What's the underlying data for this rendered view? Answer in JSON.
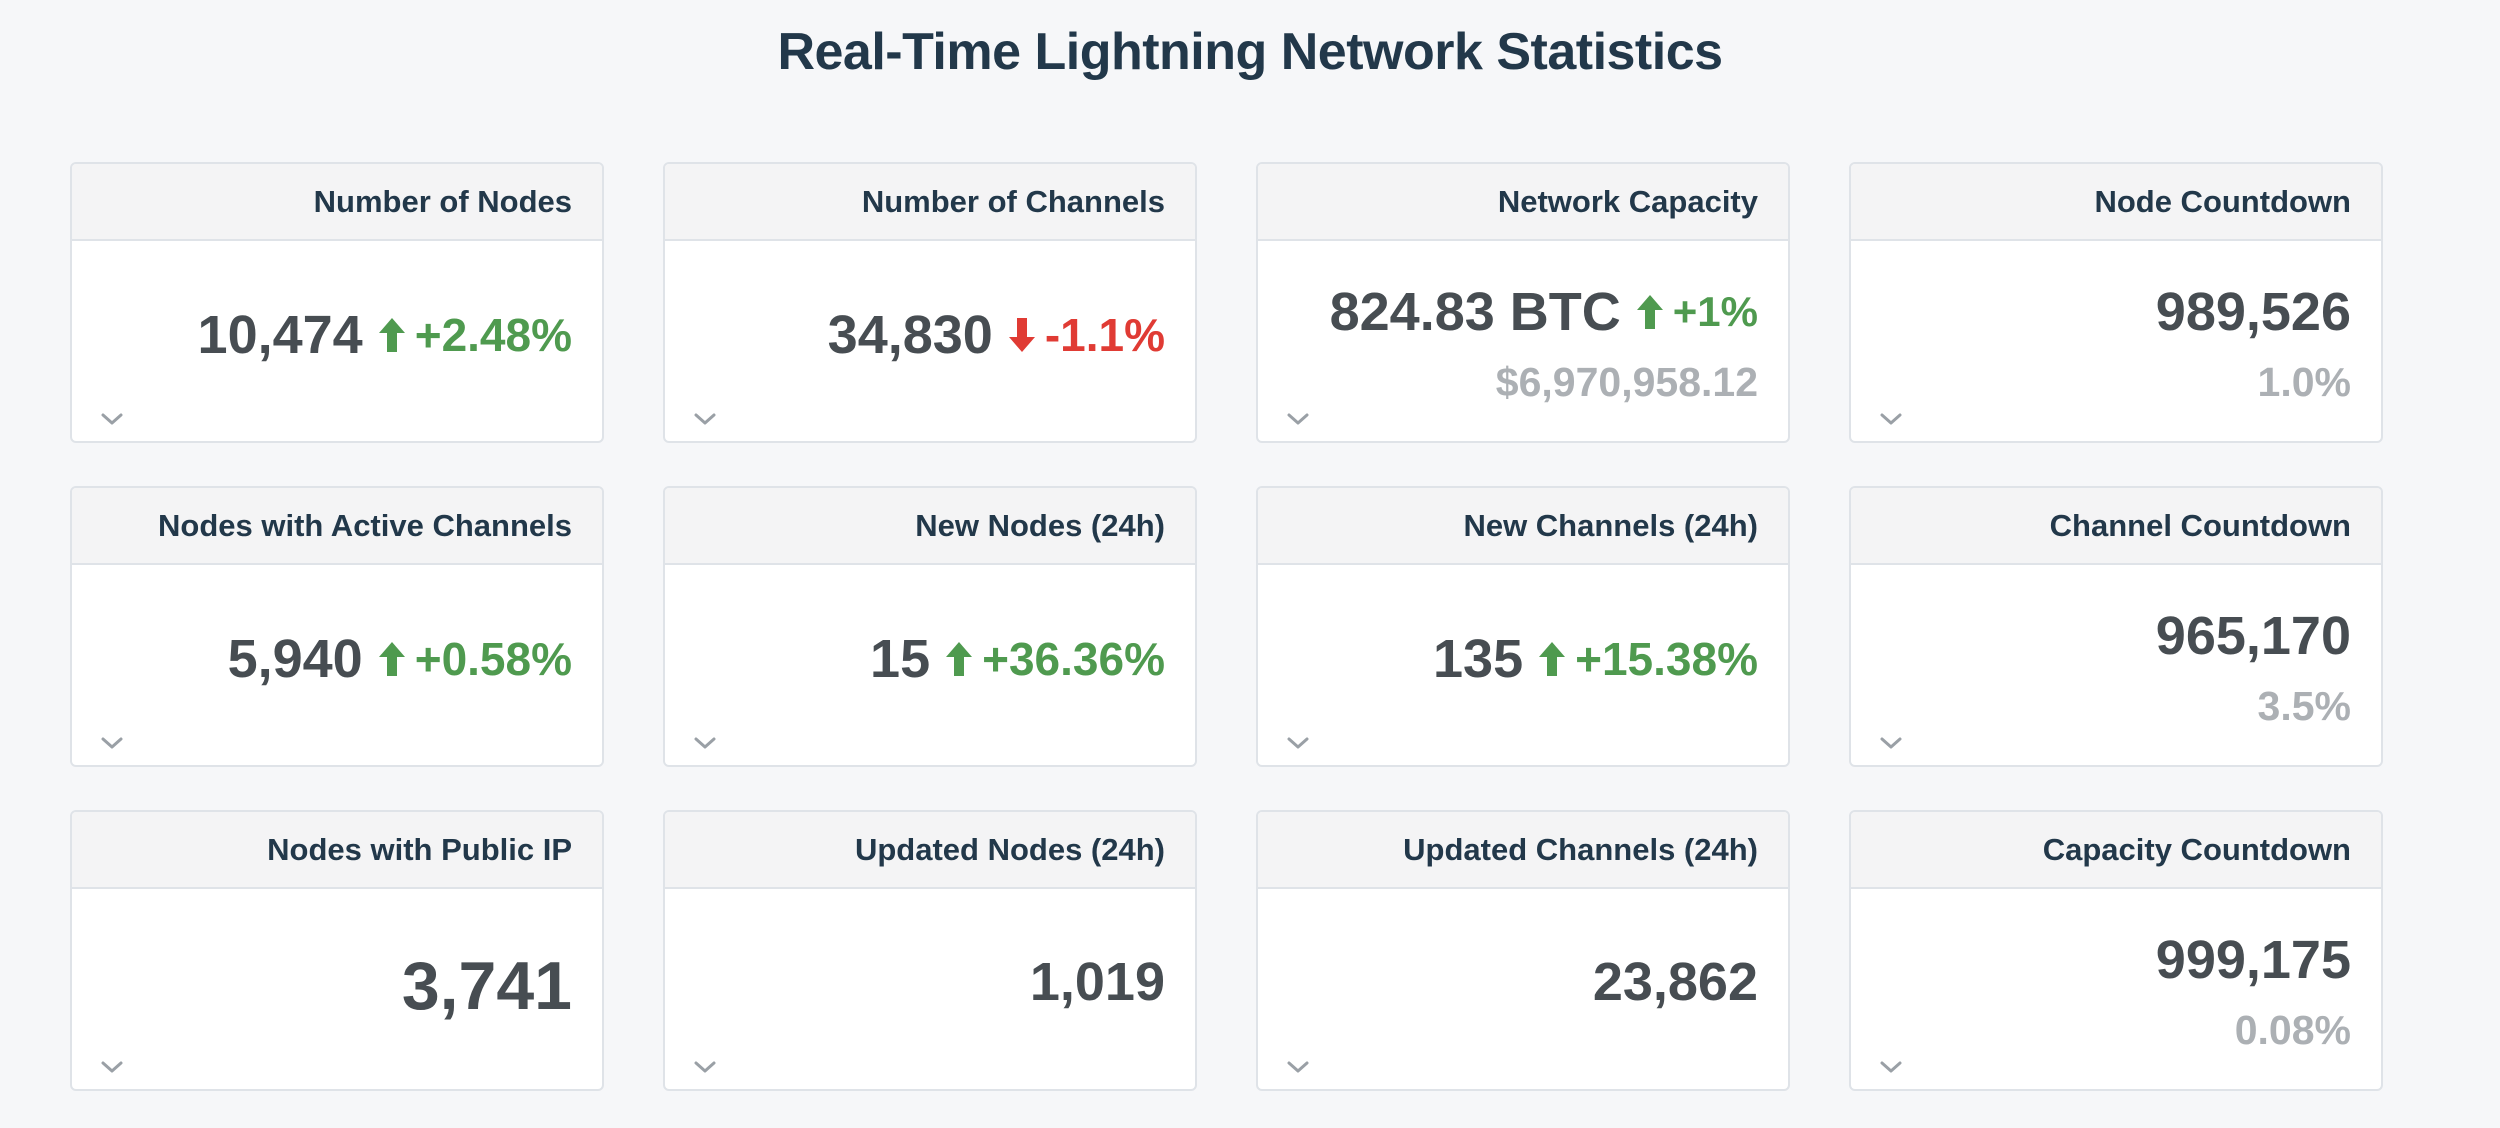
{
  "title": "Real-Time Lightning Network Statistics",
  "colors": {
    "up": "#4f9a4f",
    "down": "#e03b34",
    "value": "#474d52",
    "muted": "#acb0b4",
    "header": "#22384a"
  },
  "cards": [
    {
      "label": "Number of Nodes",
      "value": "10,474",
      "change": "+2.48%",
      "direction": "up",
      "sub": ""
    },
    {
      "label": "Number of Channels",
      "value": "34,830",
      "change": "-1.1%",
      "direction": "down",
      "sub": ""
    },
    {
      "label": "Network Capacity",
      "value": "824.83 BTC",
      "change": "+1%",
      "direction": "up",
      "sub": "$6,970,958.12"
    },
    {
      "label": "Node Countdown",
      "value": "989,526",
      "change": "",
      "direction": "",
      "sub": "1.0%"
    },
    {
      "label": "Nodes with Active Channels",
      "value": "5,940",
      "change": "+0.58%",
      "direction": "up",
      "sub": ""
    },
    {
      "label": "New Nodes (24h)",
      "value": "15",
      "change": "+36.36%",
      "direction": "up",
      "sub": ""
    },
    {
      "label": "New Channels (24h)",
      "value": "135",
      "change": "+15.38%",
      "direction": "up",
      "sub": ""
    },
    {
      "label": "Channel Countdown",
      "value": "965,170",
      "change": "",
      "direction": "",
      "sub": "3.5%"
    },
    {
      "label": "Nodes with Public IP",
      "value": "3,741",
      "change": "",
      "direction": "",
      "sub": ""
    },
    {
      "label": "Updated Nodes (24h)",
      "value": "1,019",
      "change": "",
      "direction": "",
      "sub": ""
    },
    {
      "label": "Updated Channels (24h)",
      "value": "23,862",
      "change": "",
      "direction": "",
      "sub": ""
    },
    {
      "label": "Capacity Countdown",
      "value": "999,175",
      "change": "",
      "direction": "",
      "sub": "0.08%"
    }
  ],
  "icons": {
    "up": "arrow-up-icon",
    "down": "arrow-down-icon",
    "expand": "chevron-down-icon"
  }
}
